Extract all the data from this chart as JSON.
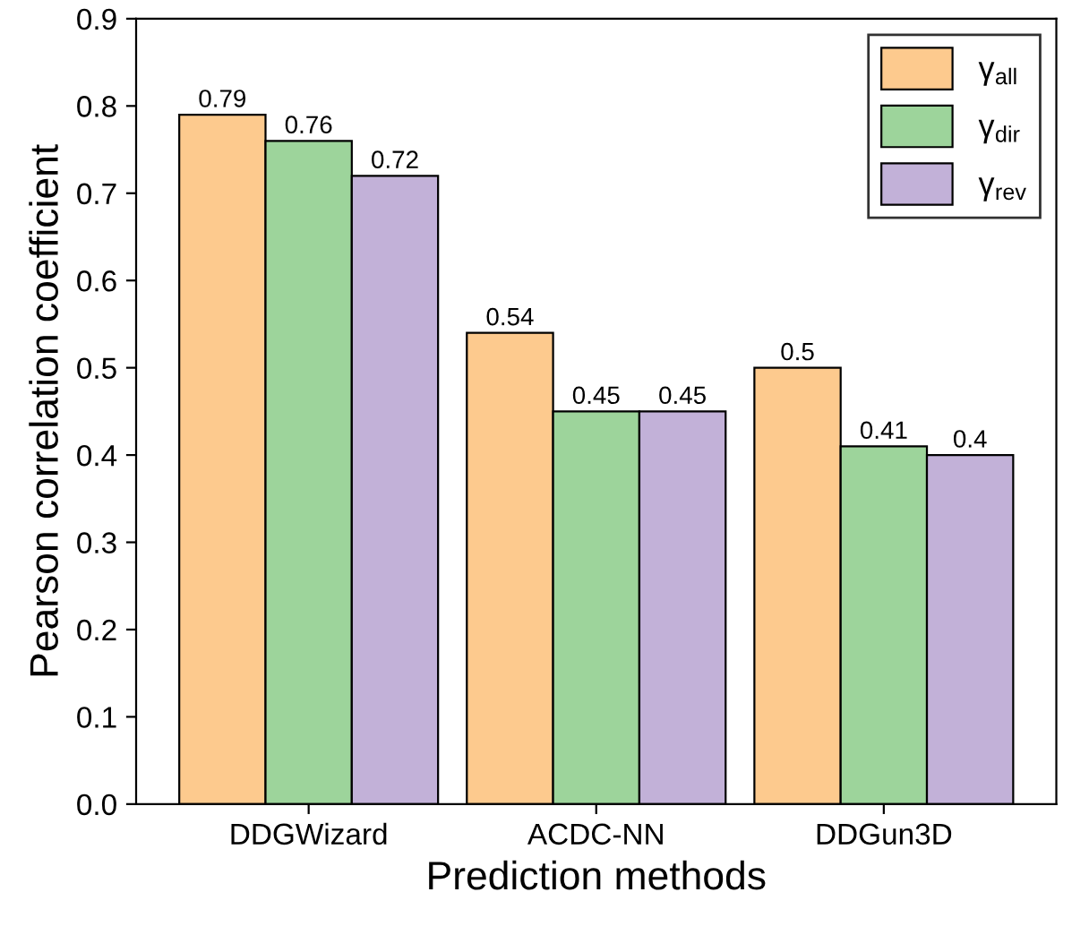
{
  "chart_data": {
    "type": "bar",
    "xlabel": "Prediction methods",
    "ylabel": "Pearson correlation coefficient",
    "categories": [
      "DDGWizard",
      "ACDC-NN",
      "DDGun3D"
    ],
    "series": [
      {
        "name": "γ$_{all}$",
        "color": "#fdca8e",
        "values": [
          0.79,
          0.54,
          0.5
        ]
      },
      {
        "name": "γ$_{dir}$",
        "color": "#9dd49b",
        "values": [
          0.76,
          0.45,
          0.41
        ]
      },
      {
        "name": "γ$_{rev}$",
        "color": "#c2b1d8",
        "values": [
          0.72,
          0.45,
          0.4
        ]
      }
    ],
    "ylim": [
      0.0,
      0.9
    ],
    "yticks": [
      {
        "value": 0,
        "label": "0.0"
      },
      0.1,
      0.2,
      0.3,
      0.4,
      0.5,
      0.6,
      0.7,
      0.8,
      0.9
    ],
    "data_labels": true,
    "grid": false,
    "legend": "top right"
  }
}
